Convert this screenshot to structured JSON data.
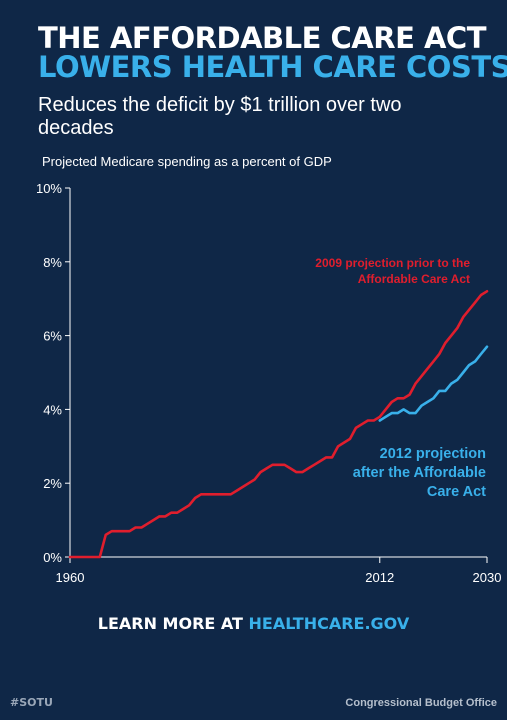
{
  "header": {
    "title_line1": "THE AFFORDABLE CARE ACT",
    "title_line2": "LOWERS HEALTH CARE COSTS",
    "subtitle": "Reduces the deficit by $1 trillion over two decades"
  },
  "colors": {
    "background": "#0f2747",
    "accent_blue": "#39b0ea",
    "red": "#e01e2d",
    "text": "#ffffff"
  },
  "chart_data": {
    "type": "line",
    "title": "Projected Medicare spending as a percent of GDP",
    "xlabel": "",
    "ylabel": "",
    "xlim": [
      1960,
      2030
    ],
    "ylim": [
      0,
      10
    ],
    "x_ticks": [
      "1960",
      "2012",
      "2030"
    ],
    "y_ticks": [
      "0%",
      "2%",
      "4%",
      "6%",
      "8%",
      "10%"
    ],
    "grid": false,
    "series": [
      {
        "name": "2009 projection prior to the Affordable Care Act",
        "color": "#e01e2d",
        "x": [
          1960,
          1961,
          1962,
          1963,
          1964,
          1965,
          1966,
          1967,
          1968,
          1969,
          1970,
          1971,
          1972,
          1973,
          1974,
          1975,
          1976,
          1977,
          1978,
          1979,
          1980,
          1981,
          1982,
          1983,
          1984,
          1985,
          1986,
          1987,
          1988,
          1989,
          1990,
          1991,
          1992,
          1993,
          1994,
          1995,
          1996,
          1997,
          1998,
          1999,
          2000,
          2001,
          2002,
          2003,
          2004,
          2005,
          2006,
          2007,
          2008,
          2009,
          2010,
          2011,
          2012,
          2013,
          2014,
          2015,
          2016,
          2017,
          2018,
          2019,
          2020,
          2021,
          2022,
          2023,
          2024,
          2025,
          2026,
          2027,
          2028,
          2029,
          2030
        ],
        "y": [
          0,
          0,
          0,
          0,
          0,
          0,
          0.6,
          0.7,
          0.7,
          0.7,
          0.7,
          0.8,
          0.8,
          0.9,
          1.0,
          1.1,
          1.1,
          1.2,
          1.2,
          1.3,
          1.4,
          1.6,
          1.7,
          1.7,
          1.7,
          1.7,
          1.7,
          1.7,
          1.8,
          1.9,
          2.0,
          2.1,
          2.3,
          2.4,
          2.5,
          2.5,
          2.5,
          2.4,
          2.3,
          2.3,
          2.4,
          2.5,
          2.6,
          2.7,
          2.7,
          3.0,
          3.1,
          3.2,
          3.5,
          3.6,
          3.7,
          3.7,
          3.8,
          4.0,
          4.2,
          4.3,
          4.3,
          4.4,
          4.7,
          4.9,
          5.1,
          5.3,
          5.5,
          5.8,
          6.0,
          6.2,
          6.5,
          6.7,
          6.9,
          7.1,
          7.2
        ]
      },
      {
        "name": "2012 projection after the Affordable Care Act",
        "color": "#39b0ea",
        "x": [
          2012,
          2013,
          2014,
          2015,
          2016,
          2017,
          2018,
          2019,
          2020,
          2021,
          2022,
          2023,
          2024,
          2025,
          2026,
          2027,
          2028,
          2029,
          2030
        ],
        "y": [
          3.7,
          3.8,
          3.9,
          3.9,
          4.0,
          3.9,
          3.9,
          4.1,
          4.2,
          4.3,
          4.5,
          4.5,
          4.7,
          4.8,
          5.0,
          5.2,
          5.3,
          5.5,
          5.7
        ]
      }
    ],
    "annotations": [
      {
        "series": 0,
        "lines": [
          "2009 projection prior to the",
          "Affordable Care Act"
        ],
        "color": "#e01e2d"
      },
      {
        "series": 1,
        "lines": [
          "2012 projection",
          "after the Affordable",
          "Care Act"
        ],
        "color": "#39b0ea"
      }
    ]
  },
  "cta": {
    "prefix": "LEARN MORE AT ",
    "link": "HEALTHCARE.GOV"
  },
  "footer": {
    "left": "#SOTU",
    "right": "Congressional Budget Office"
  }
}
